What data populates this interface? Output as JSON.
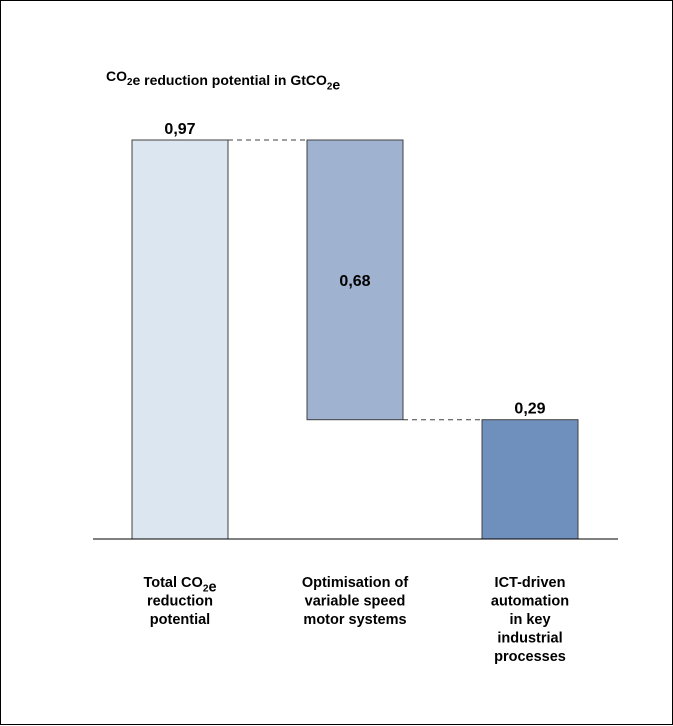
{
  "chart_data": {
    "type": "bar",
    "subtype": "waterfall",
    "title": {
      "parts": [
        {
          "t": "CO"
        },
        {
          "t": "2",
          "sub": true
        },
        {
          "t": "e reduction potential in GtCO"
        },
        {
          "t": "2",
          "sub": true
        },
        {
          "t": "e"
        }
      ]
    },
    "unit": "GtCO2e",
    "ylim": [
      0,
      0.97
    ],
    "grid": false,
    "legend": "none",
    "bars": [
      {
        "base": 0,
        "value": 0.97,
        "label": "0,97",
        "label_position": "above",
        "color": "#dce6f1",
        "category_lines": [
          [
            {
              "t": "Total CO"
            },
            {
              "t": "2",
              "sub": true
            },
            {
              "t": "e"
            }
          ],
          [
            {
              "t": "reduction"
            }
          ],
          [
            {
              "t": "potential"
            }
          ]
        ]
      },
      {
        "base": 0.29,
        "value": 0.68,
        "label": "0,68",
        "label_position": "inside",
        "color": "#9fb2d0",
        "category_lines": [
          [
            {
              "t": "Optimisation of"
            }
          ],
          [
            {
              "t": "variable speed"
            }
          ],
          [
            {
              "t": "motor systems"
            }
          ]
        ]
      },
      {
        "base": 0,
        "value": 0.29,
        "label": "0,29",
        "label_position": "above",
        "color": "#6f8fbc",
        "category_lines": [
          [
            {
              "t": "ICT-driven"
            }
          ],
          [
            {
              "t": "automation"
            }
          ],
          [
            {
              "t": "in key"
            }
          ],
          [
            {
              "t": "industrial"
            }
          ],
          [
            {
              "t": "processes"
            }
          ]
        ]
      }
    ],
    "colors": {
      "bar_border": "#404040",
      "axis": "#000000",
      "connector": "#404040"
    }
  }
}
